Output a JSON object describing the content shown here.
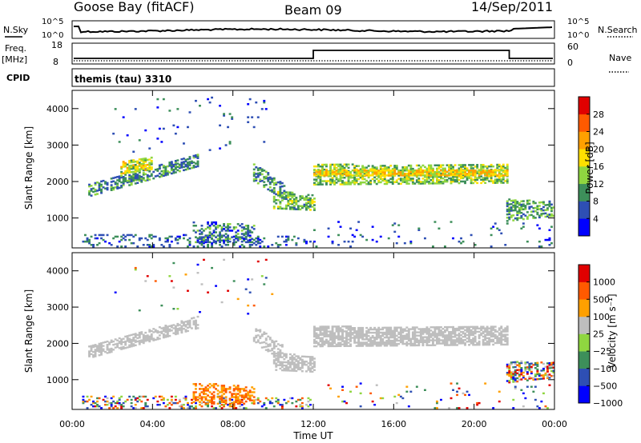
{
  "header": {
    "radar": "Goose Bay (fitACF)",
    "beam": "Beam 09",
    "date": "14/Sep/2011"
  },
  "noise_panel": {
    "left_label": "N.Sky",
    "right_label": "N.Search",
    "left_ticks": [
      "10^5",
      "10^0"
    ],
    "right_ticks": [
      "10^5",
      "10^0"
    ]
  },
  "freq_panel": {
    "left_label_top": "Freq.",
    "left_label_unit": "[MHz]",
    "right_label": "Nave",
    "left_ticks": [
      "18",
      "8"
    ],
    "right_ticks": [
      "60",
      "0"
    ]
  },
  "cpid_panel": {
    "label": "CPID",
    "text": "themis (tau) 3310"
  },
  "colors": {
    "power_scale": [
      "#0000ff",
      "#2e4fb4",
      "#3d8f5a",
      "#8fd640",
      "#ffe000",
      "#ffa000",
      "#ff5a00",
      "#e00000"
    ],
    "velocity_scale": [
      "#0000ff",
      "#2e4fb4",
      "#3d8f5a",
      "#8fd640",
      "#bebebe",
      "#ffa000",
      "#ff5a00",
      "#e00000"
    ],
    "ground_scatter": "#bebebe"
  },
  "chart_data": [
    {
      "type": "heatmap",
      "panel": "power",
      "ylabel": "Slant Range [km]",
      "yticks": [
        "1000",
        "2000",
        "3000",
        "4000"
      ],
      "ylim": [
        180,
        4500
      ],
      "xlim": [
        0,
        24
      ],
      "colorbar": {
        "label": "Power [dB]",
        "levels": [
          "4",
          "8",
          "12",
          "16",
          "20",
          "24",
          "28"
        ],
        "range": [
          0,
          32
        ]
      },
      "regions": [
        {
          "t0": 0.8,
          "t1": 6.2,
          "r0_start": 1580,
          "r1_start": 1900,
          "r0_end": 2400,
          "r1_end": 2760,
          "density": 0.55,
          "level_mean": 9
        },
        {
          "t0": 2.4,
          "t1": 4.0,
          "r0_start": 2200,
          "r1_start": 2520,
          "r0_end": 2330,
          "r1_end": 2650,
          "density": 0.7,
          "level_mean": 16
        },
        {
          "t0": 9.0,
          "t1": 10.5,
          "r0_start": 2000,
          "r1_start": 2500,
          "r0_end": 1500,
          "r1_end": 1900,
          "density": 0.45,
          "level_mean": 9
        },
        {
          "t0": 10.0,
          "t1": 12.0,
          "r0_start": 1250,
          "r1_start": 1750,
          "r0_end": 1200,
          "r1_end": 1600,
          "density": 0.6,
          "level_mean": 12
        },
        {
          "t0": 12.0,
          "t1": 21.7,
          "r0_start": 1900,
          "r1_start": 2450,
          "r0_end": 1950,
          "r1_end": 2450,
          "density": 0.6,
          "level_mean": 13
        },
        {
          "t0": 12.0,
          "t1": 21.7,
          "r0_start": 2150,
          "r1_start": 2330,
          "r0_end": 2150,
          "r1_end": 2330,
          "density": 0.75,
          "level_mean": 19
        },
        {
          "t0": 21.6,
          "t1": 24.0,
          "r0_start": 900,
          "r1_start": 1500,
          "r0_end": 1050,
          "r1_end": 1450,
          "density": 0.5,
          "level_mean": 11
        },
        {
          "t0": 0.5,
          "t1": 12.0,
          "r0_start": 200,
          "r1_start": 550,
          "r0_end": 200,
          "r1_end": 500,
          "density": 0.2,
          "level_mean": 7
        },
        {
          "t0": 6.0,
          "t1": 9.0,
          "r0_start": 320,
          "r1_start": 900,
          "r0_end": 320,
          "r1_end": 800,
          "density": 0.4,
          "level_mean": 8
        },
        {
          "t0": 12.0,
          "t1": 24.0,
          "r0_start": 200,
          "r1_start": 900,
          "r0_end": 200,
          "r1_end": 900,
          "density": 0.04,
          "level_mean": 7
        },
        {
          "t0": 2.0,
          "t1": 10.0,
          "r0_start": 2800,
          "r1_start": 4300,
          "r0_end": 2800,
          "r1_end": 4300,
          "density": 0.015,
          "level_mean": 6
        }
      ]
    },
    {
      "type": "heatmap",
      "panel": "velocity",
      "ylabel": "Slant Range [km]",
      "yticks": [
        "1000",
        "2000",
        "3000",
        "4000"
      ],
      "ylim": [
        180,
        4500
      ],
      "xlim": [
        0,
        24
      ],
      "xlabel": "Time UT",
      "xticks": [
        "00:00",
        "04:00",
        "08:00",
        "12:00",
        "16:00",
        "20:00",
        "00:00"
      ],
      "colorbar": {
        "label": "Velocity [m s⁻¹]",
        "levels": [
          "1000",
          "500",
          "100",
          "25",
          "−25",
          "−100",
          "−500",
          "−1000"
        ],
        "range": [
          -1200,
          1200
        ]
      },
      "regions": [
        {
          "t0": 0.8,
          "t1": 6.2,
          "r0_start": 1580,
          "r1_start": 1900,
          "r0_end": 2400,
          "r1_end": 2760,
          "density": 0.6,
          "class": "ground"
        },
        {
          "t0": 9.0,
          "t1": 10.5,
          "r0_start": 2000,
          "r1_start": 2500,
          "r0_end": 1500,
          "r1_end": 1900,
          "density": 0.45,
          "class": "ground"
        },
        {
          "t0": 10.0,
          "t1": 12.0,
          "r0_start": 1250,
          "r1_start": 1750,
          "r0_end": 1200,
          "r1_end": 1600,
          "density": 0.6,
          "class": "ground"
        },
        {
          "t0": 12.0,
          "t1": 21.7,
          "r0_start": 1900,
          "r1_start": 2450,
          "r0_end": 1950,
          "r1_end": 2450,
          "density": 0.75,
          "class": "ground"
        },
        {
          "t0": 21.6,
          "t1": 24.0,
          "r0_start": 900,
          "r1_start": 1500,
          "r0_end": 1050,
          "r1_end": 1450,
          "density": 0.55,
          "class": "mixed"
        },
        {
          "t0": 0.5,
          "t1": 12.0,
          "r0_start": 200,
          "r1_start": 550,
          "r0_end": 200,
          "r1_end": 500,
          "density": 0.25,
          "class": "mixed"
        },
        {
          "t0": 6.0,
          "t1": 9.0,
          "r0_start": 320,
          "r1_start": 900,
          "r0_end": 320,
          "r1_end": 800,
          "density": 0.45,
          "class": "negative"
        },
        {
          "t0": 12.0,
          "t1": 24.0,
          "r0_start": 200,
          "r1_start": 900,
          "r0_end": 200,
          "r1_end": 900,
          "density": 0.04,
          "class": "mixed"
        },
        {
          "t0": 2.0,
          "t1": 10.0,
          "r0_start": 2800,
          "r1_start": 4300,
          "r0_end": 2800,
          "r1_end": 4300,
          "density": 0.015,
          "class": "mixed"
        }
      ]
    }
  ]
}
